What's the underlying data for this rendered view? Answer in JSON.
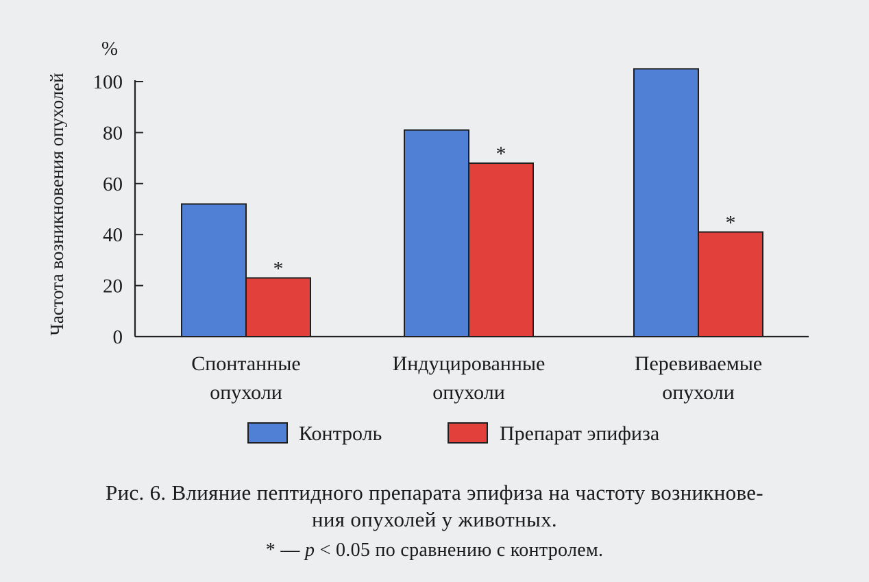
{
  "chart_data": {
    "type": "bar",
    "ylabel": "Частота возникновения опухолей",
    "yunit": "%",
    "ylim": [
      0,
      100
    ],
    "yticks": [
      0,
      20,
      40,
      60,
      80,
      100
    ],
    "categories": [
      [
        "Спонтанные",
        "опухоли"
      ],
      [
        "Индуцированные",
        "опухоли"
      ],
      [
        "Перевиваемые",
        "опухоли"
      ]
    ],
    "series": [
      {
        "name": "Контроль",
        "values": [
          52,
          81,
          105
        ],
        "color": "#4f80d6"
      },
      {
        "name": "Препарат эпифиза",
        "values": [
          23,
          68,
          41
        ],
        "color": "#e2403a"
      }
    ],
    "significance_marks": [
      {
        "category": 0,
        "series": 1,
        "text": "*"
      },
      {
        "category": 1,
        "series": 1,
        "text": "*"
      },
      {
        "category": 2,
        "series": 1,
        "text": "*"
      }
    ],
    "legend_position": "bottom",
    "grid": false
  },
  "caption": {
    "line1": "Рис. 6. Влияние пептидного препарата эпифиза на частоту возникнове-",
    "line2": "ния опухолей у животных.",
    "note_star": "*",
    "note_dash": "—",
    "note_p": "p",
    "note_rest": "< 0.05 по сравнению с контролем."
  }
}
